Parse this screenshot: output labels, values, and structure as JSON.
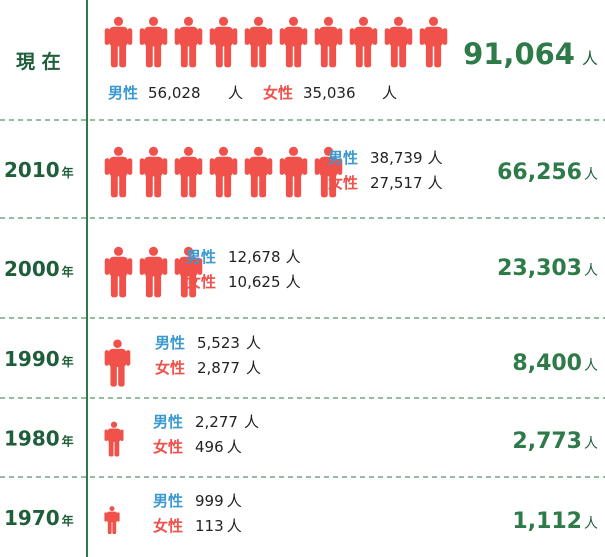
{
  "chart_data": {
    "type": "pictogram",
    "unit": "人",
    "year_suffix": "年",
    "labels": {
      "male": "男性",
      "female": "女性"
    },
    "colors": {
      "male": "#3b9bd1",
      "female": "#f0514a",
      "accent": "#2e7a48",
      "divider": "#2e7a48"
    },
    "rows": [
      {
        "year": "現 在",
        "has_suffix": false,
        "male": 56028,
        "female": 35036,
        "total": 91064,
        "male_text": "56,028",
        "female_text": "35,036",
        "total_text": "91,064"
      },
      {
        "year": "2010",
        "has_suffix": true,
        "male": 38739,
        "female": 27517,
        "total": 66256,
        "male_text": "38,739",
        "female_text": "27,517",
        "total_text": "66,256"
      },
      {
        "year": "2000",
        "has_suffix": true,
        "male": 12678,
        "female": 10625,
        "total": 23303,
        "male_text": "12,678",
        "female_text": "10,625",
        "total_text": "23,303"
      },
      {
        "year": "1990",
        "has_suffix": true,
        "male": 5523,
        "female": 2877,
        "total": 8400,
        "male_text": "5,523",
        "female_text": "2,877",
        "total_text": "8,400"
      },
      {
        "year": "1980",
        "has_suffix": true,
        "male": 2277,
        "female": 496,
        "total": 2773,
        "male_text": "2,277",
        "female_text": "496",
        "total_text": "2,773"
      },
      {
        "year": "1970",
        "has_suffix": true,
        "male": 999,
        "female": 113,
        "total": 1112,
        "male_text": "999",
        "female_text": "113",
        "total_text": "1,112"
      }
    ]
  }
}
